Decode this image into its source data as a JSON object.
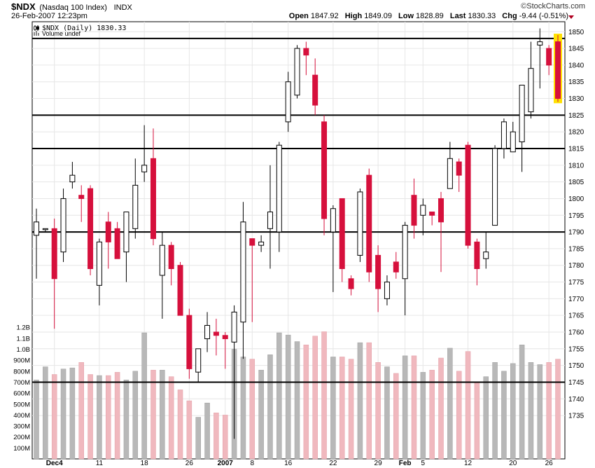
{
  "header": {
    "symbol": "$NDX",
    "name": "(Nasdaq 100 Index)",
    "exchange": "INDX",
    "copyright": "©StockCharts.com",
    "datetime": "26-Feb-2007 12:23pm",
    "open_label": "Open",
    "open": "1847.92",
    "high_label": "High",
    "high": "1849.09",
    "low_label": "Low",
    "low": "1828.89",
    "last_label": "Last",
    "last": "1830.33",
    "chg_label": "Chg",
    "chg": "-9.44 (-0.51%)",
    "chg_color": "#b00020"
  },
  "legend": {
    "price": "$NDX (Daily) 1830.33",
    "volume": "Volume undef"
  },
  "chart_data": {
    "type": "candlestick",
    "colors": {
      "up": "#ffffff",
      "down": "#d6103c",
      "up_volume": "#b8b8b8",
      "down_volume": "#f0b8be",
      "highlight": "#ffe100"
    },
    "price_ylim": [
      1722,
      1853
    ],
    "price_ticks": [
      1735,
      1740,
      1745,
      1750,
      1755,
      1760,
      1765,
      1770,
      1775,
      1780,
      1785,
      1790,
      1795,
      1800,
      1805,
      1810,
      1815,
      1820,
      1825,
      1830,
      1835,
      1840,
      1845,
      1850
    ],
    "volume_ticks": [
      {
        "v": 100,
        "label": "100M"
      },
      {
        "v": 200,
        "label": "200M"
      },
      {
        "v": 300,
        "label": "300M"
      },
      {
        "v": 400,
        "label": "400M"
      },
      {
        "v": 500,
        "label": "500M"
      },
      {
        "v": 600,
        "label": "600M"
      },
      {
        "v": 700,
        "label": "700M"
      },
      {
        "v": 800,
        "label": "800M"
      },
      {
        "v": 900,
        "label": "900M"
      },
      {
        "v": 1000,
        "label": "1.0B"
      },
      {
        "v": 1100,
        "label": "1.1B"
      },
      {
        "v": 1200,
        "label": "1.2B"
      }
    ],
    "x_labels": [
      {
        "i": 2,
        "label": "Dec4",
        "bold": true
      },
      {
        "i": 7,
        "label": "11"
      },
      {
        "i": 12,
        "label": "18"
      },
      {
        "i": 17,
        "label": "26"
      },
      {
        "i": 21,
        "label": "2007",
        "bold": true
      },
      {
        "i": 24,
        "label": "8"
      },
      {
        "i": 28,
        "label": "16"
      },
      {
        "i": 33,
        "label": "22"
      },
      {
        "i": 38,
        "label": "29"
      },
      {
        "i": 41,
        "label": "Feb",
        "bold": true
      },
      {
        "i": 43,
        "label": "5"
      },
      {
        "i": 48,
        "label": "12"
      },
      {
        "i": 53,
        "label": "20"
      },
      {
        "i": 57,
        "label": "26"
      }
    ],
    "horizontal_lines": [
      1848,
      1825,
      1815,
      1790,
      1745
    ],
    "candles": [
      {
        "o": 1789,
        "h": 1797,
        "l": 1776,
        "c": 1793,
        "v": 720
      },
      {
        "o": 1791,
        "h": 1791,
        "l": 1790,
        "c": 1791,
        "v": 840
      },
      {
        "o": 1791,
        "h": 1794,
        "l": 1761,
        "c": 1776,
        "v": 770
      },
      {
        "o": 1784,
        "h": 1803,
        "l": 1781,
        "c": 1800,
        "v": 820
      },
      {
        "o": 1805,
        "h": 1811,
        "l": 1803,
        "c": 1807,
        "v": 830
      },
      {
        "o": 1801,
        "h": 1804,
        "l": 1793,
        "c": 1800,
        "v": 880
      },
      {
        "o": 1803,
        "h": 1804,
        "l": 1777,
        "c": 1779,
        "v": 770
      },
      {
        "o": 1774,
        "h": 1788,
        "l": 1768,
        "c": 1787,
        "v": 760
      },
      {
        "o": 1793,
        "h": 1796,
        "l": 1779,
        "c": 1787,
        "v": 760
      },
      {
        "o": 1791,
        "h": 1793,
        "l": 1782,
        "c": 1782,
        "v": 790
      },
      {
        "o": 1784,
        "h": 1796,
        "l": 1775,
        "c": 1796,
        "v": 720
      },
      {
        "o": 1791,
        "h": 1812,
        "l": 1788,
        "c": 1804,
        "v": 800
      },
      {
        "o": 1808,
        "h": 1822,
        "l": 1805,
        "c": 1810,
        "v": 1150
      },
      {
        "o": 1812,
        "h": 1821,
        "l": 1786,
        "c": 1788,
        "v": 810
      },
      {
        "o": 1777,
        "h": 1790,
        "l": 1764,
        "c": 1786,
        "v": 810
      },
      {
        "o": 1786,
        "h": 1787,
        "l": 1774,
        "c": 1779,
        "v": 750
      },
      {
        "o": 1780,
        "h": 1781,
        "l": 1765,
        "c": 1765,
        "v": 630
      },
      {
        "o": 1765,
        "h": 1767,
        "l": 1746,
        "c": 1749,
        "v": 530
      },
      {
        "o": 1748,
        "h": 1755,
        "l": 1745,
        "c": 1755,
        "v": 380
      },
      {
        "o": 1758,
        "h": 1766,
        "l": 1754,
        "c": 1762,
        "v": 510
      },
      {
        "o": 1760,
        "h": 1764,
        "l": 1753,
        "c": 1759,
        "v": 420
      },
      {
        "o": 1759,
        "h": 1760,
        "l": 1749,
        "c": 1758,
        "v": 400
      },
      {
        "o": 1757,
        "h": 1768,
        "l": 1728,
        "c": 1766,
        "v": 1000
      },
      {
        "o": 1763,
        "h": 1799,
        "l": 1752,
        "c": 1793,
        "v": 930
      },
      {
        "o": 1788,
        "h": 1788,
        "l": 1763,
        "c": 1786,
        "v": 910
      },
      {
        "o": 1786,
        "h": 1789,
        "l": 1784,
        "c": 1787,
        "v": 810
      },
      {
        "o": 1791,
        "h": 1810,
        "l": 1779,
        "c": 1796,
        "v": 950
      },
      {
        "o": 1790,
        "h": 1817,
        "l": 1784,
        "c": 1816,
        "v": 1150
      },
      {
        "o": 1823,
        "h": 1838,
        "l": 1820,
        "c": 1835,
        "v": 1130
      },
      {
        "o": 1831,
        "h": 1846,
        "l": 1830,
        "c": 1845,
        "v": 1070
      },
      {
        "o": 1845,
        "h": 1847,
        "l": 1837,
        "c": 1843,
        "v": 1040
      },
      {
        "o": 1837,
        "h": 1842,
        "l": 1825,
        "c": 1828,
        "v": 1120
      },
      {
        "o": 1823,
        "h": 1825,
        "l": 1789,
        "c": 1794,
        "v": 1160
      },
      {
        "o": 1790,
        "h": 1798,
        "l": 1772,
        "c": 1797,
        "v": 930
      },
      {
        "o": 1800,
        "h": 1800,
        "l": 1775,
        "c": 1779,
        "v": 930
      },
      {
        "o": 1776,
        "h": 1777,
        "l": 1771,
        "c": 1773,
        "v": 910
      },
      {
        "o": 1783,
        "h": 1803,
        "l": 1781,
        "c": 1802,
        "v": 1060
      },
      {
        "o": 1807,
        "h": 1809,
        "l": 1775,
        "c": 1778,
        "v": 1060
      },
      {
        "o": 1783,
        "h": 1786,
        "l": 1766,
        "c": 1773,
        "v": 880
      },
      {
        "o": 1770,
        "h": 1777,
        "l": 1768,
        "c": 1775,
        "v": 840
      },
      {
        "o": 1781,
        "h": 1784,
        "l": 1776,
        "c": 1778,
        "v": 780
      },
      {
        "o": 1776,
        "h": 1793,
        "l": 1765,
        "c": 1792,
        "v": 940
      },
      {
        "o": 1801,
        "h": 1806,
        "l": 1788,
        "c": 1792,
        "v": 940
      },
      {
        "o": 1795,
        "h": 1800,
        "l": 1789,
        "c": 1798,
        "v": 790
      },
      {
        "o": 1796,
        "h": 1796,
        "l": 1792,
        "c": 1795,
        "v": 810
      },
      {
        "o": 1800,
        "h": 1802,
        "l": 1778,
        "c": 1793,
        "v": 920
      },
      {
        "o": 1803,
        "h": 1817,
        "l": 1803,
        "c": 1812,
        "v": 1010
      },
      {
        "o": 1811,
        "h": 1812,
        "l": 1802,
        "c": 1807,
        "v": 800
      },
      {
        "o": 1816,
        "h": 1817,
        "l": 1785,
        "c": 1786,
        "v": 980
      },
      {
        "o": 1787,
        "h": 1788,
        "l": 1774,
        "c": 1779,
        "v": 700
      },
      {
        "o": 1782,
        "h": 1790,
        "l": 1779,
        "c": 1784,
        "v": 750
      },
      {
        "o": 1792,
        "h": 1816,
        "l": 1792,
        "c": 1815,
        "v": 880
      },
      {
        "o": 1815,
        "h": 1824,
        "l": 1812,
        "c": 1823,
        "v": 800
      },
      {
        "o": 1814,
        "h": 1823,
        "l": 1815,
        "c": 1820,
        "v": 870
      },
      {
        "o": 1817,
        "h": 1834,
        "l": 1808,
        "c": 1834,
        "v": 1040
      },
      {
        "o": 1826,
        "h": 1847,
        "l": 1824,
        "c": 1839,
        "v": 880
      },
      {
        "o": 1846,
        "h": 1851,
        "l": 1833,
        "c": 1847,
        "v": 860
      },
      {
        "o": 1845,
        "h": 1846,
        "l": 1837,
        "c": 1840,
        "v": 880
      },
      {
        "o": 1847,
        "h": 1849,
        "l": 1829,
        "c": 1830,
        "v": 910,
        "highlight": true
      }
    ]
  }
}
